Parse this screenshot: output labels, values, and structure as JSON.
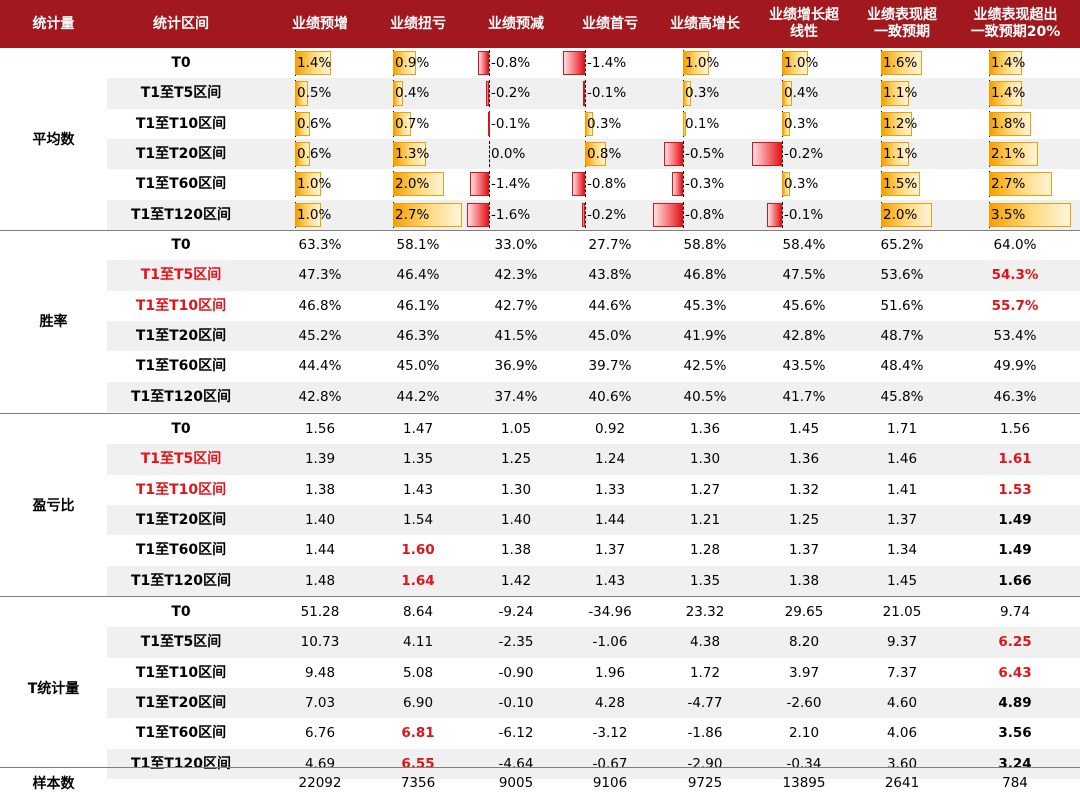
{
  "header": {
    "stat_label": "统计量",
    "interval_label": "统计区间",
    "categories": [
      "业绩预增",
      "业绩扭亏",
      "业绩预减",
      "业绩首亏",
      "业绩高增长",
      "业绩增长超\n线性",
      "业绩表现超\n一致预期",
      "业绩表现超出\n一致预期20%"
    ]
  },
  "colors": {
    "header_bg": "#a1181e",
    "highlight_red": "#e0141a",
    "bar_positive": "#f5a000",
    "bar_negative": "#e3151b",
    "row_shade": "#f0f0f0"
  },
  "groups": [
    {
      "name": "平均数",
      "type": "bars",
      "bar_max": 3.5,
      "rows": [
        {
          "label": "T0",
          "label_red": false,
          "values": [
            1.4,
            0.9,
            -0.8,
            -1.4,
            1.0,
            1.0,
            1.6,
            1.4
          ],
          "texts": [
            "1.4%",
            "0.9%",
            "-0.8%",
            "-1.4%",
            "1.0%",
            "1.0%",
            "1.6%",
            "1.4%"
          ]
        },
        {
          "label": "T1至T5区间",
          "label_red": false,
          "values": [
            0.5,
            0.4,
            -0.2,
            -0.1,
            0.3,
            0.4,
            1.1,
            1.4
          ],
          "texts": [
            "0.5%",
            "0.4%",
            "-0.2%",
            "-0.1%",
            "0.3%",
            "0.4%",
            "1.1%",
            "1.4%"
          ]
        },
        {
          "label": "T1至T10区间",
          "label_red": false,
          "values": [
            0.6,
            0.7,
            -0.1,
            0.3,
            0.1,
            0.3,
            1.2,
            1.8
          ],
          "texts": [
            "0.6%",
            "0.7%",
            "-0.1%",
            "0.3%",
            "0.1%",
            "0.3%",
            "1.2%",
            "1.8%"
          ]
        },
        {
          "label": "T1至T20区间",
          "label_red": false,
          "values": [
            0.6,
            1.3,
            0.0,
            0.8,
            -0.5,
            -0.2,
            1.1,
            2.1
          ],
          "texts": [
            "0.6%",
            "1.3%",
            "0.0%",
            "0.8%",
            "-0.5%",
            "-0.2%",
            "1.1%",
            "2.1%"
          ]
        },
        {
          "label": "T1至T60区间",
          "label_red": false,
          "values": [
            1.0,
            2.0,
            -1.4,
            -0.8,
            -0.3,
            0.3,
            1.5,
            2.7
          ],
          "texts": [
            "1.0%",
            "2.0%",
            "-1.4%",
            "-0.8%",
            "-0.3%",
            "0.3%",
            "1.5%",
            "2.7%"
          ]
        },
        {
          "label": "T1至T120区间",
          "label_red": false,
          "values": [
            1.0,
            2.7,
            -1.6,
            -0.2,
            -0.8,
            -0.1,
            2.0,
            3.5
          ],
          "texts": [
            "1.0%",
            "2.7%",
            "-1.6%",
            "-0.2%",
            "-0.8%",
            "-0.1%",
            "2.0%",
            "3.5%"
          ]
        }
      ]
    },
    {
      "name": "胜率",
      "type": "text",
      "rows": [
        {
          "label": "T0",
          "label_red": false,
          "texts": [
            "63.3%",
            "58.1%",
            "33.0%",
            "27.7%",
            "58.8%",
            "58.4%",
            "65.2%",
            "64.0%"
          ],
          "styles": [
            "",
            "",
            "",
            "",
            "",
            "",
            "",
            ""
          ]
        },
        {
          "label": "T1至T5区间",
          "label_red": true,
          "texts": [
            "47.3%",
            "46.4%",
            "42.3%",
            "43.8%",
            "46.8%",
            "47.5%",
            "53.6%",
            "54.3%"
          ],
          "styles": [
            "",
            "",
            "",
            "",
            "",
            "",
            "",
            "red"
          ]
        },
        {
          "label": "T1至T10区间",
          "label_red": true,
          "texts": [
            "46.8%",
            "46.1%",
            "42.7%",
            "44.6%",
            "45.3%",
            "45.6%",
            "51.6%",
            "55.7%"
          ],
          "styles": [
            "",
            "",
            "",
            "",
            "",
            "",
            "",
            "red"
          ]
        },
        {
          "label": "T1至T20区间",
          "label_red": false,
          "texts": [
            "45.2%",
            "46.3%",
            "41.5%",
            "45.0%",
            "41.9%",
            "42.8%",
            "48.7%",
            "53.4%"
          ],
          "styles": [
            "",
            "",
            "",
            "",
            "",
            "",
            "",
            ""
          ]
        },
        {
          "label": "T1至T60区间",
          "label_red": false,
          "texts": [
            "44.4%",
            "45.0%",
            "36.9%",
            "39.7%",
            "42.5%",
            "43.5%",
            "48.4%",
            "49.9%"
          ],
          "styles": [
            "",
            "",
            "",
            "",
            "",
            "",
            "",
            ""
          ]
        },
        {
          "label": "T1至T120区间",
          "label_red": false,
          "texts": [
            "42.8%",
            "44.2%",
            "37.4%",
            "40.6%",
            "40.5%",
            "41.7%",
            "45.8%",
            "46.3%"
          ],
          "styles": [
            "",
            "",
            "",
            "",
            "",
            "",
            "",
            ""
          ]
        }
      ]
    },
    {
      "name": "盈亏比",
      "type": "text",
      "rows": [
        {
          "label": "T0",
          "label_red": false,
          "texts": [
            "1.56",
            "1.47",
            "1.05",
            "0.92",
            "1.36",
            "1.45",
            "1.71",
            "1.56"
          ],
          "styles": [
            "",
            "",
            "",
            "",
            "",
            "",
            "",
            ""
          ]
        },
        {
          "label": "T1至T5区间",
          "label_red": true,
          "texts": [
            "1.39",
            "1.35",
            "1.25",
            "1.24",
            "1.30",
            "1.36",
            "1.46",
            "1.61"
          ],
          "styles": [
            "",
            "",
            "",
            "",
            "",
            "",
            "",
            "red"
          ]
        },
        {
          "label": "T1至T10区间",
          "label_red": true,
          "texts": [
            "1.38",
            "1.43",
            "1.30",
            "1.33",
            "1.27",
            "1.32",
            "1.41",
            "1.53"
          ],
          "styles": [
            "",
            "",
            "",
            "",
            "",
            "",
            "",
            "red"
          ]
        },
        {
          "label": "T1至T20区间",
          "label_red": false,
          "texts": [
            "1.40",
            "1.54",
            "1.40",
            "1.44",
            "1.21",
            "1.25",
            "1.37",
            "1.49"
          ],
          "styles": [
            "",
            "",
            "",
            "",
            "",
            "",
            "",
            "bold"
          ]
        },
        {
          "label": "T1至T60区间",
          "label_red": false,
          "texts": [
            "1.44",
            "1.60",
            "1.38",
            "1.37",
            "1.28",
            "1.37",
            "1.34",
            "1.49"
          ],
          "styles": [
            "",
            "red",
            "",
            "",
            "",
            "",
            "",
            "bold"
          ]
        },
        {
          "label": "T1至T120区间",
          "label_red": false,
          "texts": [
            "1.48",
            "1.64",
            "1.42",
            "1.43",
            "1.35",
            "1.38",
            "1.45",
            "1.66"
          ],
          "styles": [
            "",
            "red",
            "",
            "",
            "",
            "",
            "",
            "bold"
          ]
        }
      ]
    },
    {
      "name": "T统计量",
      "type": "text",
      "rows": [
        {
          "label": "T0",
          "label_red": false,
          "texts": [
            "51.28",
            "8.64",
            "-9.24",
            "-34.96",
            "23.32",
            "29.65",
            "21.05",
            "9.74"
          ],
          "styles": [
            "",
            "",
            "",
            "",
            "",
            "",
            "",
            ""
          ]
        },
        {
          "label": "T1至T5区间",
          "label_red": false,
          "texts": [
            "10.73",
            "4.11",
            "-2.35",
            "-1.06",
            "4.38",
            "8.20",
            "9.37",
            "6.25"
          ],
          "styles": [
            "",
            "",
            "",
            "",
            "",
            "",
            "",
            "red"
          ]
        },
        {
          "label": "T1至T10区间",
          "label_red": false,
          "texts": [
            "9.48",
            "5.08",
            "-0.90",
            "1.96",
            "1.72",
            "3.97",
            "7.37",
            "6.43"
          ],
          "styles": [
            "",
            "",
            "",
            "",
            "",
            "",
            "",
            "red"
          ]
        },
        {
          "label": "T1至T20区间",
          "label_red": false,
          "texts": [
            "7.03",
            "6.90",
            "-0.10",
            "4.28",
            "-4.77",
            "-2.60",
            "4.60",
            "4.89"
          ],
          "styles": [
            "",
            "",
            "",
            "",
            "",
            "",
            "",
            "bold"
          ]
        },
        {
          "label": "T1至T60区间",
          "label_red": false,
          "texts": [
            "6.76",
            "6.81",
            "-6.12",
            "-3.12",
            "-1.86",
            "2.10",
            "4.06",
            "3.56"
          ],
          "styles": [
            "",
            "red",
            "",
            "",
            "",
            "",
            "",
            "bold"
          ]
        },
        {
          "label": "T1至T120区间",
          "label_red": false,
          "texts": [
            "4.69",
            "6.55",
            "-4.64",
            "-0.67",
            "-2.90",
            "-0.34",
            "3.60",
            "3.24"
          ],
          "styles": [
            "",
            "red",
            "",
            "",
            "",
            "",
            "",
            "bold"
          ]
        }
      ]
    }
  ],
  "sample": {
    "label": "样本数",
    "texts": [
      "22092",
      "7356",
      "9005",
      "9106",
      "9725",
      "13895",
      "2641",
      "784"
    ]
  }
}
